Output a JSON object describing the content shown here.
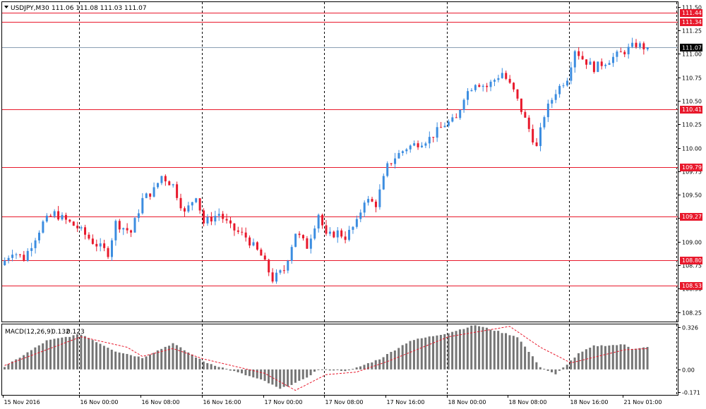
{
  "window": {
    "symbol_timeframe": "USDJPY,M30",
    "ohlc": "111.06 111.08 111.03 111.07"
  },
  "colors": {
    "background": "#ffffff",
    "frame": "#000000",
    "grid": "#000000",
    "bull": "#3c8de0",
    "bear": "#e8192c",
    "level_line": "#e8192c",
    "level_label_bg": "#e8192c",
    "level_label_text": "#ffffff",
    "current_line": "#8a9fb3",
    "current_label_bg": "#000000",
    "current_label_text": "#ffffff",
    "macd_hist": "#757575",
    "macd_signal": "#e8192c"
  },
  "chart_data": [
    {
      "type": "candlestick",
      "title": "USDJPY,M30",
      "y_axis_ticks": [
        "111.50",
        "111.25",
        "111.00",
        "110.75",
        "110.50",
        "110.25",
        "110.00",
        "109.75",
        "109.50",
        "109.25",
        "109.00",
        "108.75",
        "108.50",
        "108.25"
      ],
      "ylim": [
        108.15,
        111.55
      ],
      "x_axis_labels": [
        "15 Nov 2016",
        "16 Nov 00:00",
        "16 Nov 08:00",
        "16 Nov 16:00",
        "17 Nov 00:00",
        "17 Nov 08:00",
        "17 Nov 16:00",
        "18 Nov 00:00",
        "18 Nov 08:00",
        "18 Nov 16:00",
        "21 Nov 01:00"
      ],
      "vertical_separators_at": [
        "16 Nov 00:00",
        "16 Nov 16:00",
        "17 Nov 08:00",
        "18 Nov 00:00",
        "18 Nov 16:00",
        "21 Nov 08:00"
      ],
      "levels": [
        "111.44",
        "111.34",
        "110.41",
        "109.79",
        "109.27",
        "108.80",
        "108.53"
      ],
      "current_price": "111.07",
      "anchors": [
        [
          "15 Nov 14:00",
          108.75
        ],
        [
          "15 Nov 15:30",
          108.9
        ],
        [
          "15 Nov 17:00",
          108.82
        ],
        [
          "15 Nov 19:30",
          109.2
        ],
        [
          "15 Nov 21:00",
          109.3
        ],
        [
          "16 Nov 00:00",
          109.15
        ],
        [
          "16 Nov 02:00",
          109.0
        ],
        [
          "16 Nov 04:00",
          108.88
        ],
        [
          "16 Nov 05:00",
          109.2
        ],
        [
          "16 Nov 07:00",
          109.1
        ],
        [
          "16 Nov 08:30",
          109.45
        ],
        [
          "16 Nov 10:00",
          109.55
        ],
        [
          "16 Nov 11:00",
          109.7
        ],
        [
          "16 Nov 12:30",
          109.6
        ],
        [
          "16 Nov 14:00",
          109.3
        ],
        [
          "16 Nov 15:30",
          109.5
        ],
        [
          "16 Nov 16:30",
          109.2
        ],
        [
          "16 Nov 18:30",
          109.3
        ],
        [
          "16 Nov 20:00",
          109.15
        ],
        [
          "16 Nov 22:00",
          109.05
        ],
        [
          "17 Nov 00:00",
          108.85
        ],
        [
          "17 Nov 01:30",
          108.6
        ],
        [
          "17 Nov 03:00",
          108.7
        ],
        [
          "17 Nov 04:30",
          109.1
        ],
        [
          "17 Nov 06:00",
          108.95
        ],
        [
          "17 Nov 07:30",
          109.3
        ],
        [
          "17 Nov 08:30",
          109.05
        ],
        [
          "17 Nov 10:00",
          109.1
        ],
        [
          "17 Nov 11:00",
          109.05
        ],
        [
          "17 Nov 12:30",
          109.2
        ],
        [
          "17 Nov 13:30",
          109.45
        ],
        [
          "17 Nov 15:00",
          109.4
        ],
        [
          "17 Nov 16:30",
          109.8
        ],
        [
          "17 Nov 17:30",
          109.9
        ],
        [
          "17 Nov 19:00",
          110.0
        ],
        [
          "17 Nov 22:00",
          110.1
        ],
        [
          "18 Nov 00:00",
          110.25
        ],
        [
          "18 Nov 01:30",
          110.3
        ],
        [
          "18 Nov 02:30",
          110.55
        ],
        [
          "18 Nov 04:00",
          110.7
        ],
        [
          "18 Nov 05:30",
          110.65
        ],
        [
          "18 Nov 07:30",
          110.8
        ],
        [
          "18 Nov 09:00",
          110.6
        ],
        [
          "18 Nov 10:30",
          110.3
        ],
        [
          "18 Nov 12:00",
          110.0
        ],
        [
          "18 Nov 13:00",
          110.35
        ],
        [
          "18 Nov 14:30",
          110.6
        ],
        [
          "18 Nov 16:00",
          110.75
        ],
        [
          "18 Nov 17:00",
          111.05
        ],
        [
          "18 Nov 18:00",
          110.95
        ],
        [
          "18 Nov 19:30",
          110.85
        ],
        [
          "21 Nov 02:00",
          111.05
        ],
        [
          "21 Nov 03:00",
          111.1
        ],
        [
          "21 Nov 04:00",
          111.07
        ]
      ]
    },
    {
      "type": "bar",
      "title": "MACD(12,26,9)",
      "label_values": [
        "0.132",
        "0.123"
      ],
      "y_axis_ticks": [
        "0.326",
        "0.00",
        "-0.171"
      ],
      "ylim": [
        -0.195,
        0.345
      ],
      "histogram_anchors": [
        [
          "15 Nov 14:00",
          0.02
        ],
        [
          "15 Nov 19:30",
          0.22
        ],
        [
          "16 Nov 00:00",
          0.27
        ],
        [
          "16 Nov 04:30",
          0.14
        ],
        [
          "16 Nov 08:00",
          0.09
        ],
        [
          "16 Nov 12:00",
          0.2
        ],
        [
          "16 Nov 16:00",
          0.06
        ],
        [
          "17 Nov 00:00",
          -0.09
        ],
        [
          "17 Nov 02:00",
          -0.15
        ],
        [
          "17 Nov 05:00",
          -0.08
        ],
        [
          "17 Nov 07:00",
          0.0
        ],
        [
          "17 Nov 11:00",
          -0.01
        ],
        [
          "17 Nov 15:00",
          0.08
        ],
        [
          "17 Nov 19:00",
          0.22
        ],
        [
          "18 Nov 00:00",
          0.28
        ],
        [
          "18 Nov 03:30",
          0.34
        ],
        [
          "18 Nov 09:00",
          0.25
        ],
        [
          "18 Nov 12:00",
          0.02
        ],
        [
          "18 Nov 14:00",
          -0.04
        ],
        [
          "18 Nov 17:00",
          0.12
        ],
        [
          "18 Nov 19:00",
          0.18
        ],
        [
          "21 Nov 01:00",
          0.19
        ],
        [
          "21 Nov 02:00",
          0.16
        ],
        [
          "21 Nov 04:00",
          0.17
        ]
      ],
      "signal_anchors": [
        [
          "15 Nov 14:00",
          0.03
        ],
        [
          "16 Nov 00:00",
          0.25
        ],
        [
          "16 Nov 06:00",
          0.17
        ],
        [
          "16 Nov 08:00",
          0.1
        ],
        [
          "16 Nov 12:00",
          0.16
        ],
        [
          "16 Nov 16:00",
          0.08
        ],
        [
          "17 Nov 00:00",
          -0.03
        ],
        [
          "17 Nov 04:00",
          -0.16
        ],
        [
          "17 Nov 08:00",
          -0.04
        ],
        [
          "17 Nov 12:00",
          -0.02
        ],
        [
          "17 Nov 16:00",
          0.06
        ],
        [
          "18 Nov 00:00",
          0.25
        ],
        [
          "18 Nov 08:00",
          0.33
        ],
        [
          "18 Nov 12:00",
          0.17
        ],
        [
          "18 Nov 16:00",
          0.05
        ],
        [
          "21 Nov 01:00",
          0.15
        ],
        [
          "21 Nov 04:00",
          0.16
        ]
      ]
    }
  ]
}
